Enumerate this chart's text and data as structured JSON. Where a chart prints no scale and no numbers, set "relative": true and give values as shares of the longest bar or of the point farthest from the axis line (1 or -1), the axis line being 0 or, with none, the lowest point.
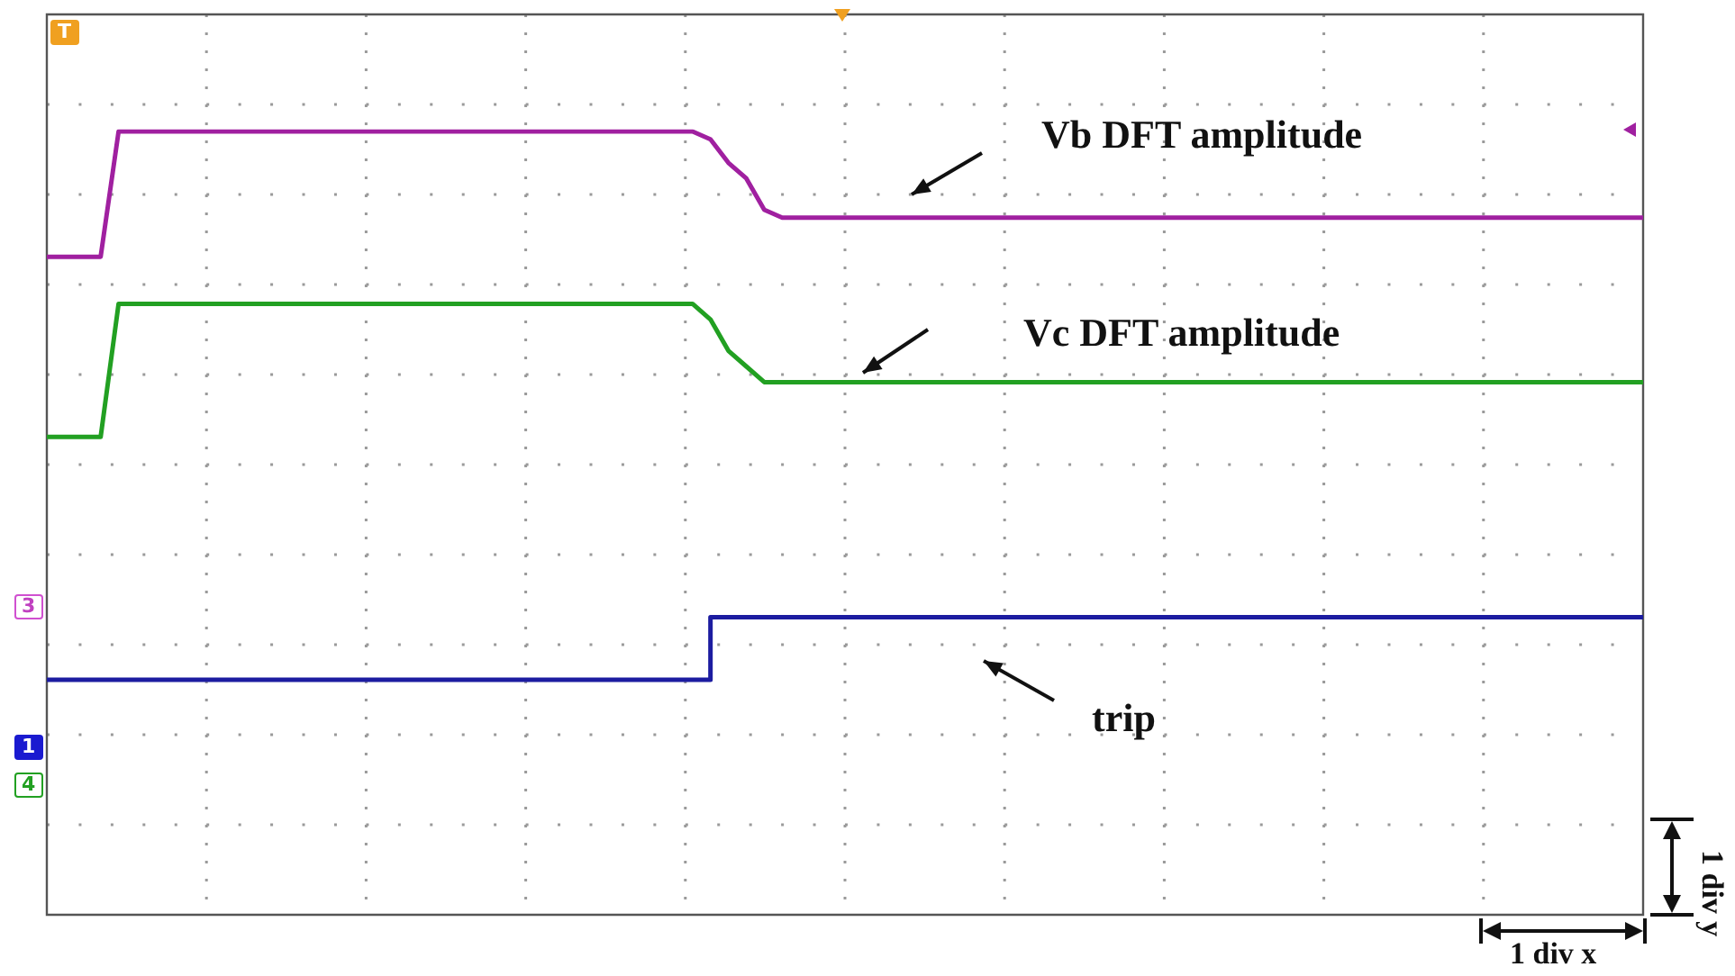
{
  "chart_data": {
    "type": "line",
    "relative": true,
    "grid": true,
    "legend": false,
    "marker": "none",
    "categories": [
      null,
      null,
      null,
      null,
      null,
      null,
      null,
      null,
      null,
      null,
      null,
      null,
      null,
      null,
      null,
      null,
      null,
      null,
      null,
      null,
      null,
      null,
      null,
      null,
      null,
      null,
      null,
      null,
      null,
      null,
      null,
      null,
      null,
      null,
      null,
      null,
      null,
      null,
      null,
      null,
      null,
      null,
      null,
      null,
      null,
      null,
      null,
      null,
      null,
      null,
      null,
      null,
      null,
      null,
      null,
      null,
      null,
      null,
      null,
      null,
      null,
      null,
      null,
      null,
      null,
      null,
      null,
      null,
      null,
      null,
      null,
      null,
      null,
      null,
      null,
      null,
      null,
      null,
      null,
      null,
      null,
      null,
      null,
      null,
      null,
      null,
      null,
      null,
      null,
      null
    ],
    "series": [
      {
        "name": "Vb DFT amplitude",
        "color": "#a020a0",
        "values": [
          0.84,
          0.84,
          0.84,
          0.84,
          1,
          1,
          1,
          1,
          1,
          1,
          1,
          1,
          1,
          1,
          1,
          1,
          1,
          1,
          1,
          1,
          1,
          1,
          1,
          1,
          1,
          1,
          1,
          1,
          1,
          1,
          1,
          1,
          1,
          1,
          1,
          1,
          1,
          0.99,
          0.96,
          0.94,
          0.9,
          0.89,
          0.89,
          0.89,
          0.89,
          0.89,
          0.89,
          0.89,
          0.89,
          0.89,
          0.89,
          0.89,
          0.89,
          0.89,
          0.89,
          0.89,
          0.89,
          0.89,
          0.89,
          0.89,
          0.89,
          0.89,
          0.89,
          0.89,
          0.89,
          0.89,
          0.89,
          0.89,
          0.89,
          0.89,
          0.89,
          0.89,
          0.89,
          0.89,
          0.89,
          0.89,
          0.89,
          0.89,
          0.89,
          0.89,
          0.89,
          0.89,
          0.89,
          0.89,
          0.89,
          0.89,
          0.89,
          0.89,
          0.89,
          0.89
        ]
      },
      {
        "name": "Vc DFT amplitude",
        "color": "#22a022",
        "values": [
          0.61,
          0.61,
          0.61,
          0.61,
          0.78,
          0.78,
          0.78,
          0.78,
          0.78,
          0.78,
          0.78,
          0.78,
          0.78,
          0.78,
          0.78,
          0.78,
          0.78,
          0.78,
          0.78,
          0.78,
          0.78,
          0.78,
          0.78,
          0.78,
          0.78,
          0.78,
          0.78,
          0.78,
          0.78,
          0.78,
          0.78,
          0.78,
          0.78,
          0.78,
          0.78,
          0.78,
          0.78,
          0.76,
          0.72,
          0.7,
          0.68,
          0.68,
          0.68,
          0.68,
          0.68,
          0.68,
          0.68,
          0.68,
          0.68,
          0.68,
          0.68,
          0.68,
          0.68,
          0.68,
          0.68,
          0.68,
          0.68,
          0.68,
          0.68,
          0.68,
          0.68,
          0.68,
          0.68,
          0.68,
          0.68,
          0.68,
          0.68,
          0.68,
          0.68,
          0.68,
          0.68,
          0.68,
          0.68,
          0.68,
          0.68,
          0.68,
          0.68,
          0.68,
          0.68,
          0.68,
          0.68,
          0.68,
          0.68,
          0.68,
          0.68,
          0.68,
          0.68,
          0.68,
          0.68,
          0.68
        ]
      },
      {
        "name": "trip",
        "type": "step",
        "color": "#1c1ca0",
        "values": [
          0.3,
          0.3,
          0.3,
          0.3,
          0.3,
          0.3,
          0.3,
          0.3,
          0.3,
          0.3,
          0.3,
          0.3,
          0.3,
          0.3,
          0.3,
          0.3,
          0.3,
          0.3,
          0.3,
          0.3,
          0.3,
          0.3,
          0.3,
          0.3,
          0.3,
          0.3,
          0.3,
          0.3,
          0.3,
          0.3,
          0.3,
          0.3,
          0.3,
          0.3,
          0.3,
          0.3,
          0.3,
          0.3,
          0.38,
          0.38,
          0.38,
          0.38,
          0.38,
          0.38,
          0.38,
          0.38,
          0.38,
          0.38,
          0.38,
          0.38,
          0.38,
          0.38,
          0.38,
          0.38,
          0.38,
          0.38,
          0.38,
          0.38,
          0.38,
          0.38,
          0.38,
          0.38,
          0.38,
          0.38,
          0.38,
          0.38,
          0.38,
          0.38,
          0.38,
          0.38,
          0.38,
          0.38,
          0.38,
          0.38,
          0.38,
          0.38,
          0.38,
          0.38,
          0.38,
          0.38,
          0.38,
          0.38,
          0.38,
          0.38,
          0.38,
          0.38,
          0.38,
          0.38,
          0.38,
          0.38
        ]
      }
    ],
    "annotations": [
      "T",
      "3",
      "1",
      "4",
      "1 div y",
      "1 div x"
    ]
  }
}
